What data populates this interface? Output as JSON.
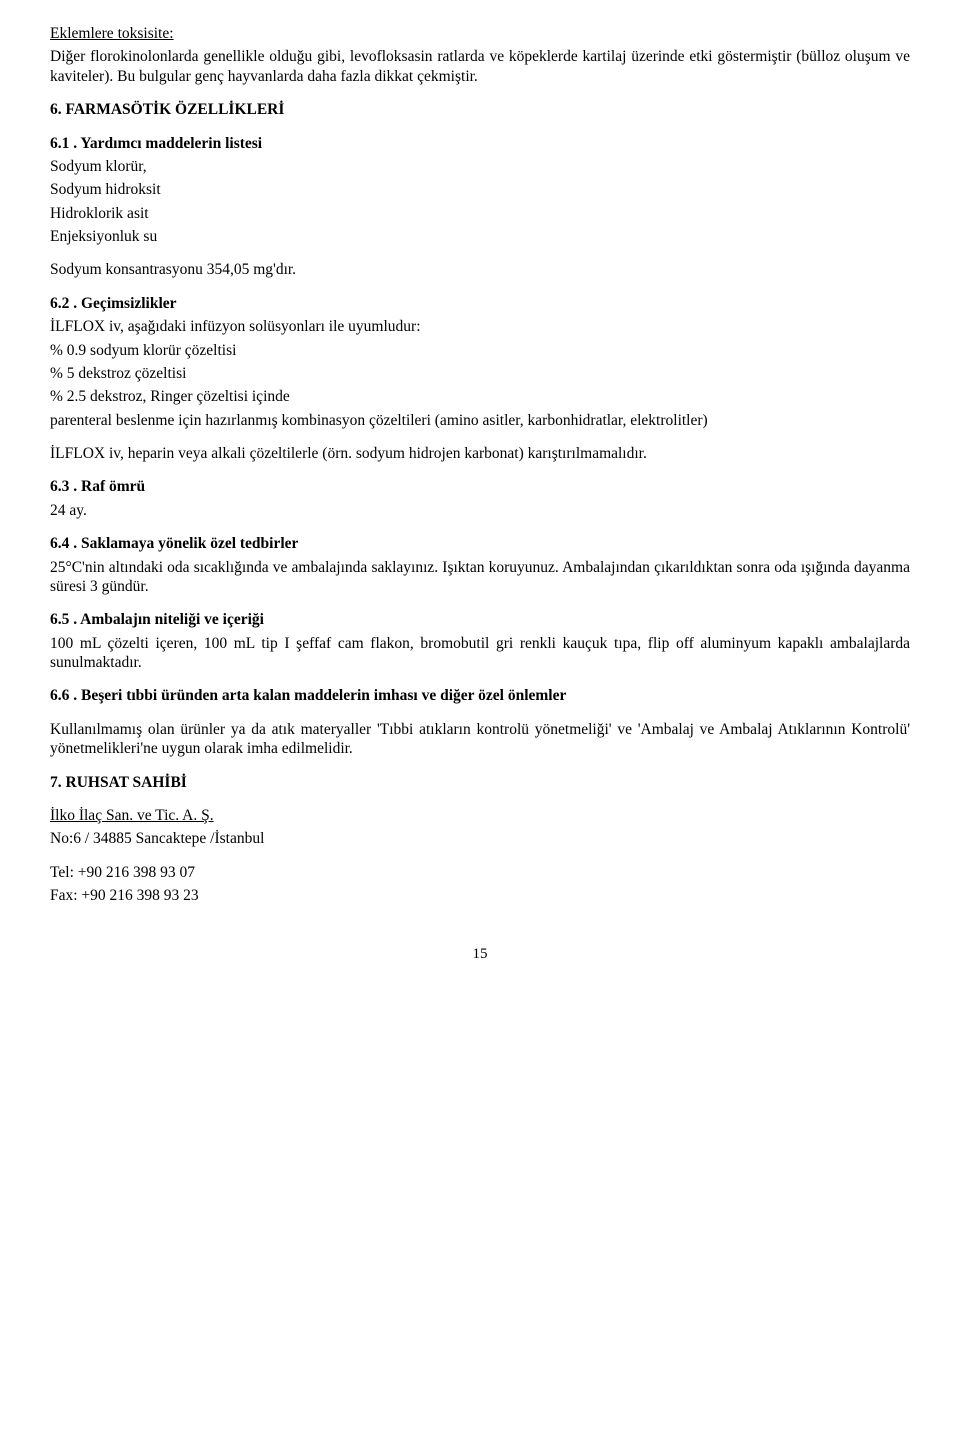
{
  "toxicity": {
    "heading": "Eklemlere toksisite:",
    "para": "Diğer florokinolonlarda genellikle olduğu gibi, levofloksasin ratlarda ve köpeklerde kartilaj üzerinde etki göstermiştir (bülloz oluşum ve kaviteler). Bu bulgular genç hayvanlarda daha fazla dikkat çekmiştir."
  },
  "s6": {
    "heading": "6. FARMASÖTİK ÖZELLİKLERİ",
    "s61": {
      "heading": "6.1 . Yardımcı maddelerin listesi",
      "l1": "Sodyum klorür,",
      "l2": "Sodyum hidroksit",
      "l3": "Hidroklorik asit",
      "l4": "Enjeksiyonluk su",
      "conc": "Sodyum konsantrasyonu 354,05 mg'dır."
    },
    "s62": {
      "heading": "6.2 . Geçimsizlikler",
      "l1": "İLFLOX iv, aşağıdaki infüzyon solüsyonları ile uyumludur:",
      "l2": "% 0.9 sodyum klorür çözeltisi",
      "l3": "% 5 dekstroz çözeltisi",
      "l4": "% 2.5 dekstroz, Ringer çözeltisi içinde",
      "l5": "parenteral beslenme için hazırlanmış kombinasyon çözeltileri (amino asitler, karbonhidratlar, elektrolitler)",
      "warn": "İLFLOX iv, heparin veya alkali çözeltilerle (örn. sodyum hidrojen karbonat) karıştırılmamalıdır."
    },
    "s63": {
      "heading": "6.3 . Raf ömrü",
      "val": "24 ay."
    },
    "s64": {
      "heading": "6.4 . Saklamaya yönelik özel tedbirler",
      "para": "25°C'nin altındaki oda sıcaklığında ve ambalajında saklayınız. Işıktan koruyunuz. Ambalajından çıkarıldıktan sonra oda ışığında dayanma süresi 3 gündür."
    },
    "s65": {
      "heading": "6.5 . Ambalajın niteliği ve içeriği",
      "para": "100 mL çözelti içeren, 100 mL tip I şeffaf cam flakon, bromobutil gri renkli kauçuk tıpa, flip off aluminyum kapaklı ambalajlarda sunulmaktadır."
    },
    "s66": {
      "heading": "6.6 . Beşeri tıbbi üründen arta kalan maddelerin imhası ve diğer özel önlemler",
      "para": "Kullanılmamış olan ürünler ya da atık materyaller 'Tıbbi atıkların kontrolü yönetmeliği' ve 'Ambalaj ve Ambalaj Atıklarının Kontrolü' yönetmelikleri'ne uygun olarak imha edilmelidir."
    }
  },
  "s7": {
    "heading": "7. RUHSAT SAHİBİ",
    "company": "İlko İlaç San. ve Tic. A. Ş.",
    "address": "No:6 / 34885 Sancaktepe /İstanbul",
    "tel": "Tel: +90 216 398 93 07",
    "fax": "Fax: +90 216 398 93 23"
  },
  "page": "15"
}
